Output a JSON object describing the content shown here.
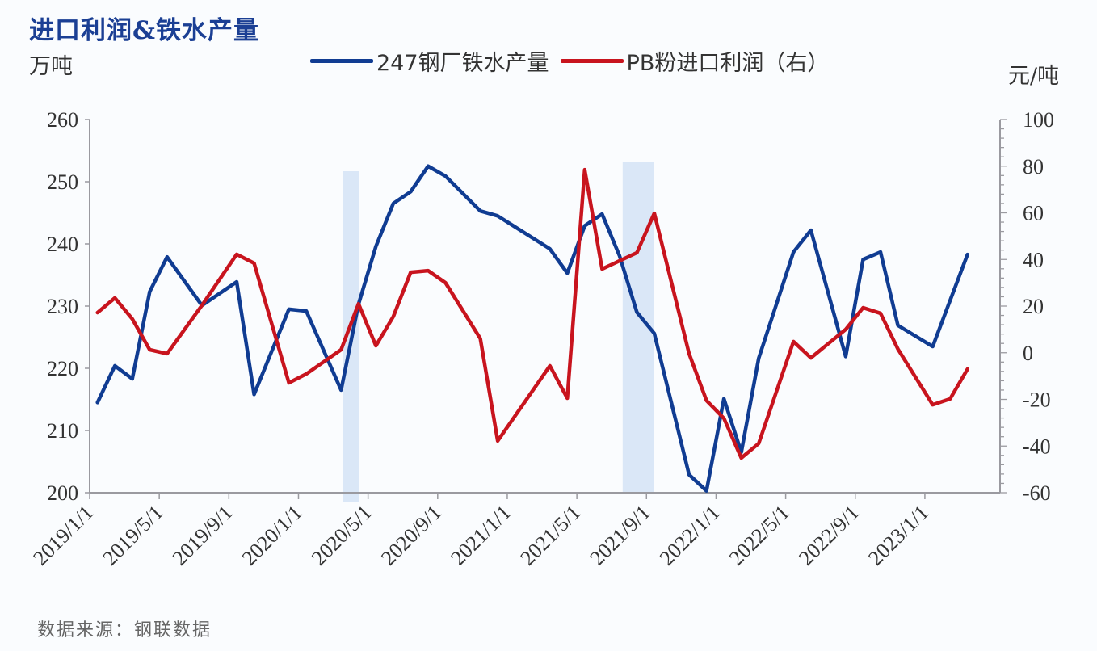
{
  "chart_data": {
    "type": "line",
    "title": "进口利润&铁水产量",
    "ylabel_left": "万吨",
    "ylabel_right": "元/吨",
    "source": "数据来源：钢联数据",
    "ylim_left": [
      200,
      260
    ],
    "ylim_right": [
      -60,
      100
    ],
    "yticks_left": [
      "260",
      "250",
      "240",
      "230",
      "220",
      "210",
      "200"
    ],
    "yticks_right": [
      "100",
      "80",
      "60",
      "40",
      "20",
      "0",
      "-20",
      "-40",
      "-60"
    ],
    "xlim": [
      "2019-01",
      "2023-05"
    ],
    "xticks": [
      "2019/1/1",
      "2019/5/1",
      "2019/9/1",
      "2020/1/1",
      "2020/5/1",
      "2020/9/1",
      "2021/1/1",
      "2021/5/1",
      "2021/9/1",
      "2022/1/1",
      "2022/5/1",
      "2022/9/1",
      "2023/1/1"
    ],
    "grid": false,
    "legend_position": "top",
    "shaded_periods": [
      [
        "2020-03-18",
        "2020-04-15"
      ],
      [
        "2021-07-20",
        "2021-09-14"
      ]
    ],
    "series": [
      {
        "name": "247钢厂铁水产量",
        "axis": "left",
        "color": "#103c92",
        "x": [
          "2019-01",
          "2019-02",
          "2019-03",
          "2019-04",
          "2019-05",
          "2019-07",
          "2019-09",
          "2019-10",
          "2019-12",
          "2020-01",
          "2020-03",
          "2020-04",
          "2020-05",
          "2020-06",
          "2020-07",
          "2020-08",
          "2020-09",
          "2020-11",
          "2020-12",
          "2021-03",
          "2021-04",
          "2021-05",
          "2021-06",
          "2021-07",
          "2021-08",
          "2021-09",
          "2021-11",
          "2021-12",
          "2022-01",
          "2022-02",
          "2022-03",
          "2022-05",
          "2022-06",
          "2022-08",
          "2022-09",
          "2022-10",
          "2022-11",
          "2023-01",
          "2023-03"
        ],
        "values": [
          214.5,
          220.4,
          218.3,
          232.3,
          237.9,
          230.1,
          233.9,
          215.8,
          229.5,
          229.2,
          216.5,
          230.3,
          239.6,
          246.5,
          248.4,
          252.5,
          250.9,
          245.3,
          244.5,
          239.2,
          235.3,
          242.9,
          244.8,
          238.1,
          229.0,
          225.6,
          202.9,
          200.3,
          215.1,
          206.5,
          221.6,
          238.7,
          242.2,
          221.9,
          237.5,
          238.7,
          226.9,
          223.5,
          238.3
        ]
      },
      {
        "name": "PB粉进口利润（右）",
        "axis": "right",
        "color": "#c8141e",
        "x": [
          "2019-01",
          "2019-02",
          "2019-03",
          "2019-04",
          "2019-05",
          "2019-07",
          "2019-09",
          "2019-10",
          "2019-12",
          "2020-01",
          "2020-03",
          "2020-04",
          "2020-05",
          "2020-06",
          "2020-07",
          "2020-08",
          "2020-09",
          "2020-11",
          "2020-12",
          "2021-03",
          "2021-04",
          "2021-05",
          "2021-06",
          "2021-08",
          "2021-09",
          "2021-11",
          "2021-12",
          "2022-01",
          "2022-02",
          "2022-03",
          "2022-05",
          "2022-06",
          "2022-08",
          "2022-09",
          "2022-10",
          "2022-11",
          "2023-01",
          "2023-02",
          "2023-03"
        ],
        "values": [
          17.2,
          23.5,
          14.5,
          1.3,
          -0.4,
          20.3,
          42.2,
          38.4,
          -12.9,
          -9.1,
          1.3,
          21.0,
          3.0,
          15.5,
          34.5,
          35.2,
          30.0,
          6.1,
          -37.8,
          -5.6,
          -19.5,
          78.5,
          35.9,
          42.9,
          59.8,
          -0.4,
          -20.5,
          -28.1,
          -45.1,
          -38.9,
          4.8,
          -2.2,
          10.0,
          19.3,
          16.9,
          1.6,
          -22.3,
          -19.8,
          -7.0
        ]
      }
    ]
  }
}
